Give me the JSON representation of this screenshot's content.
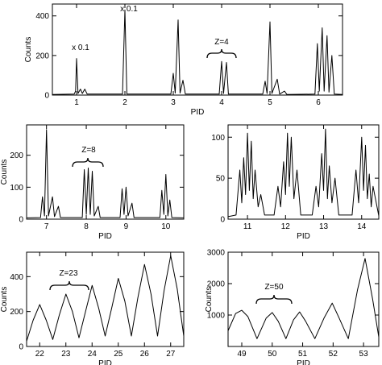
{
  "chart_data": [
    {
      "type": "line",
      "xlabel": "PID",
      "ylabel": "Counts",
      "xlim": [
        0.5,
        6.5
      ],
      "ylim": [
        0,
        460
      ],
      "xticks": [
        1,
        2,
        3,
        4,
        5,
        6
      ],
      "yticks": [
        0,
        200,
        400
      ],
      "annotations": [
        "x 0.1",
        "x 0.1",
        "Z=4"
      ],
      "series": [
        {
          "color": "#000000",
          "x": [
            0.5,
            0.95,
            0.98,
            1.0,
            1.03,
            1.08,
            1.12,
            1.17,
            1.22,
            1.95,
            2.0,
            2.04,
            2.95,
            3.0,
            3.04,
            3.1,
            3.14,
            3.2,
            3.25,
            3.95,
            4.0,
            4.04,
            4.1,
            4.14,
            4.85,
            4.9,
            4.94,
            5.0,
            5.04,
            5.15,
            5.2,
            5.3,
            5.35,
            5.93,
            5.98,
            6.02,
            6.08,
            6.12,
            6.18,
            6.22,
            6.28,
            6.33,
            6.5
          ],
          "values": [
            3,
            5,
            20,
            185,
            8,
            30,
            8,
            30,
            5,
            5,
            430,
            5,
            5,
            110,
            10,
            380,
            10,
            75,
            5,
            5,
            170,
            8,
            165,
            5,
            5,
            70,
            8,
            370,
            8,
            80,
            5,
            20,
            3,
            5,
            260,
            20,
            340,
            20,
            300,
            15,
            200,
            5,
            3
          ]
        }
      ]
    },
    {
      "type": "line",
      "xlabel": "PID",
      "ylabel": "Counts",
      "xlim": [
        6.5,
        10.45
      ],
      "ylim": [
        0,
        295
      ],
      "xticks": [
        7,
        8,
        9,
        10
      ],
      "yticks": [
        0,
        100,
        200
      ],
      "annotations": [
        "Z=8"
      ],
      "series": [
        {
          "color": "#000000",
          "x": [
            6.5,
            6.85,
            6.9,
            6.95,
            7.0,
            7.05,
            7.15,
            7.2,
            7.3,
            7.35,
            7.9,
            7.95,
            8.0,
            8.05,
            8.1,
            8.15,
            8.2,
            8.3,
            8.35,
            8.85,
            8.9,
            8.95,
            9.0,
            9.05,
            9.15,
            9.2,
            9.85,
            9.9,
            9.95,
            10.0,
            10.05,
            10.1,
            10.15,
            10.45
          ],
          "values": [
            4,
            5,
            70,
            10,
            280,
            10,
            70,
            8,
            40,
            5,
            5,
            155,
            15,
            160,
            15,
            150,
            10,
            40,
            5,
            5,
            95,
            15,
            100,
            10,
            50,
            5,
            5,
            90,
            15,
            140,
            10,
            60,
            5,
            4
          ]
        }
      ]
    },
    {
      "type": "line",
      "xlabel": "PID",
      "xlim": [
        10.49,
        14.45
      ],
      "ylim": [
        0,
        115
      ],
      "xticks": [
        11,
        12,
        13,
        14
      ],
      "yticks": [
        0,
        50,
        100
      ],
      "annotations": [],
      "series": [
        {
          "color": "#000000",
          "x": [
            10.49,
            10.7,
            10.8,
            10.85,
            10.9,
            10.95,
            11.0,
            11.05,
            11.1,
            11.15,
            11.2,
            11.28,
            11.35,
            11.45,
            11.7,
            11.8,
            11.87,
            11.95,
            12.0,
            12.05,
            12.1,
            12.15,
            12.22,
            12.3,
            12.4,
            12.7,
            12.8,
            12.87,
            12.95,
            13.0,
            13.05,
            13.1,
            13.15,
            13.22,
            13.3,
            13.4,
            13.75,
            13.85,
            13.92,
            14.0,
            14.05,
            14.1,
            14.15,
            14.2,
            14.25,
            14.3,
            14.45
          ],
          "values": [
            3,
            5,
            60,
            20,
            75,
            30,
            105,
            35,
            95,
            25,
            60,
            15,
            30,
            5,
            5,
            40,
            15,
            70,
            30,
            105,
            40,
            100,
            25,
            60,
            5,
            5,
            40,
            15,
            80,
            35,
            110,
            25,
            65,
            20,
            50,
            5,
            5,
            60,
            20,
            100,
            35,
            90,
            25,
            55,
            15,
            40,
            4
          ]
        }
      ]
    },
    {
      "type": "line",
      "xlabel": "PID",
      "ylabel": "Counts",
      "xlim": [
        21.5,
        27.5
      ],
      "ylim": [
        0,
        540
      ],
      "xticks": [
        22,
        23,
        24,
        25,
        26,
        27
      ],
      "yticks": [
        0,
        200,
        400
      ],
      "annotations": [
        "Z=23"
      ],
      "series": [
        {
          "color": "#000000",
          "x": [
            21.5,
            21.75,
            22.0,
            22.25,
            22.5,
            22.75,
            23.0,
            23.25,
            23.5,
            23.75,
            24.0,
            24.25,
            24.5,
            24.75,
            25.0,
            25.25,
            25.5,
            25.75,
            26.0,
            26.25,
            26.5,
            26.75,
            27.0,
            27.25,
            27.5
          ],
          "values": [
            30,
            150,
            240,
            150,
            40,
            180,
            300,
            200,
            50,
            200,
            350,
            220,
            60,
            220,
            390,
            260,
            60,
            280,
            470,
            300,
            60,
            320,
            520,
            330,
            60
          ]
        }
      ]
    },
    {
      "type": "line",
      "xlabel": "PID",
      "ylabel": "Counts",
      "xlim": [
        48.55,
        53.5
      ],
      "ylim": [
        0,
        3000
      ],
      "xticks": [
        49,
        50,
        51,
        52,
        53
      ],
      "yticks": [
        1000,
        2000,
        3000
      ],
      "annotations": [
        "Z=50"
      ],
      "series": [
        {
          "color": "#000000",
          "x": [
            48.55,
            48.8,
            49.0,
            49.2,
            49.5,
            49.8,
            50.0,
            50.2,
            50.45,
            50.7,
            50.9,
            51.1,
            51.4,
            51.7,
            51.97,
            52.2,
            52.5,
            52.8,
            53.05,
            53.3,
            53.5
          ],
          "values": [
            500,
            1050,
            1150,
            950,
            250,
            900,
            1080,
            800,
            250,
            850,
            1100,
            800,
            250,
            900,
            1380,
            900,
            250,
            1800,
            2800,
            1500,
            300
          ]
        }
      ]
    }
  ]
}
